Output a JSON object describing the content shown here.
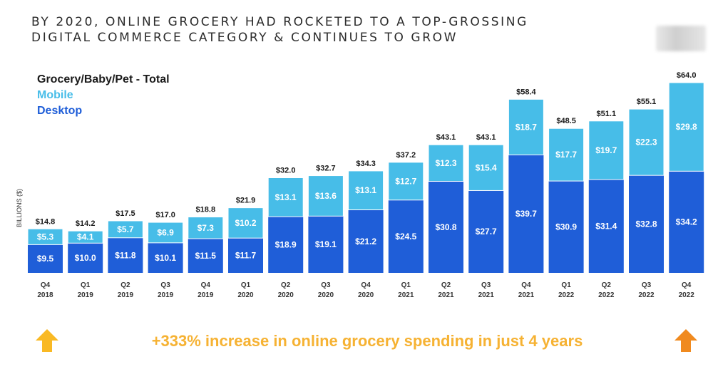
{
  "header": {
    "title": "BY 2020, ONLINE GROCERY HAD ROCKETED TO A TOP-GROSSING\nDIGITAL COMMERCE CATEGORY & CONTINUES TO GROW"
  },
  "footer": {
    "text": "+333% increase in online grocery spending in just 4 years",
    "left_arrow_color": "#f9b924",
    "right_arrow_color": "#f08a1f"
  },
  "colors": {
    "mobile": "#47bde8",
    "desktop": "#1f5ed8",
    "legend_total": "#1a1a1a"
  },
  "chart_data": {
    "type": "bar",
    "stacked": true,
    "ylabel": "BILLIONS ($)",
    "legend": [
      "Grocery/Baby/Pet - Total",
      "Mobile",
      "Desktop"
    ],
    "legend_position": "top-left",
    "categories": [
      "Q4 2018",
      "Q1 2019",
      "Q2 2019",
      "Q3 2019",
      "Q4 2019",
      "Q1 2020",
      "Q2 2020",
      "Q3 2020",
      "Q4 2020",
      "Q1 2021",
      "Q2 2021",
      "Q3 2021",
      "Q4 2021",
      "Q1 2022",
      "Q2 2022",
      "Q3 2022",
      "Q4 2022"
    ],
    "series": [
      {
        "name": "Desktop",
        "values": [
          9.5,
          10.0,
          11.8,
          10.1,
          11.5,
          11.7,
          18.9,
          19.1,
          21.2,
          24.5,
          30.8,
          27.7,
          39.7,
          30.9,
          31.4,
          32.8,
          34.2
        ]
      },
      {
        "name": "Mobile",
        "values": [
          5.3,
          4.1,
          5.7,
          6.9,
          7.3,
          10.2,
          13.1,
          13.6,
          13.1,
          12.7,
          12.3,
          15.4,
          18.7,
          17.7,
          19.7,
          22.3,
          29.8
        ]
      }
    ],
    "totals": [
      14.8,
      14.2,
      17.5,
      17.0,
      18.8,
      21.9,
      32.0,
      32.7,
      34.3,
      37.2,
      43.1,
      43.1,
      58.4,
      48.5,
      51.1,
      55.1,
      64.0
    ],
    "ylim": [
      0,
      64
    ],
    "grid": false
  }
}
